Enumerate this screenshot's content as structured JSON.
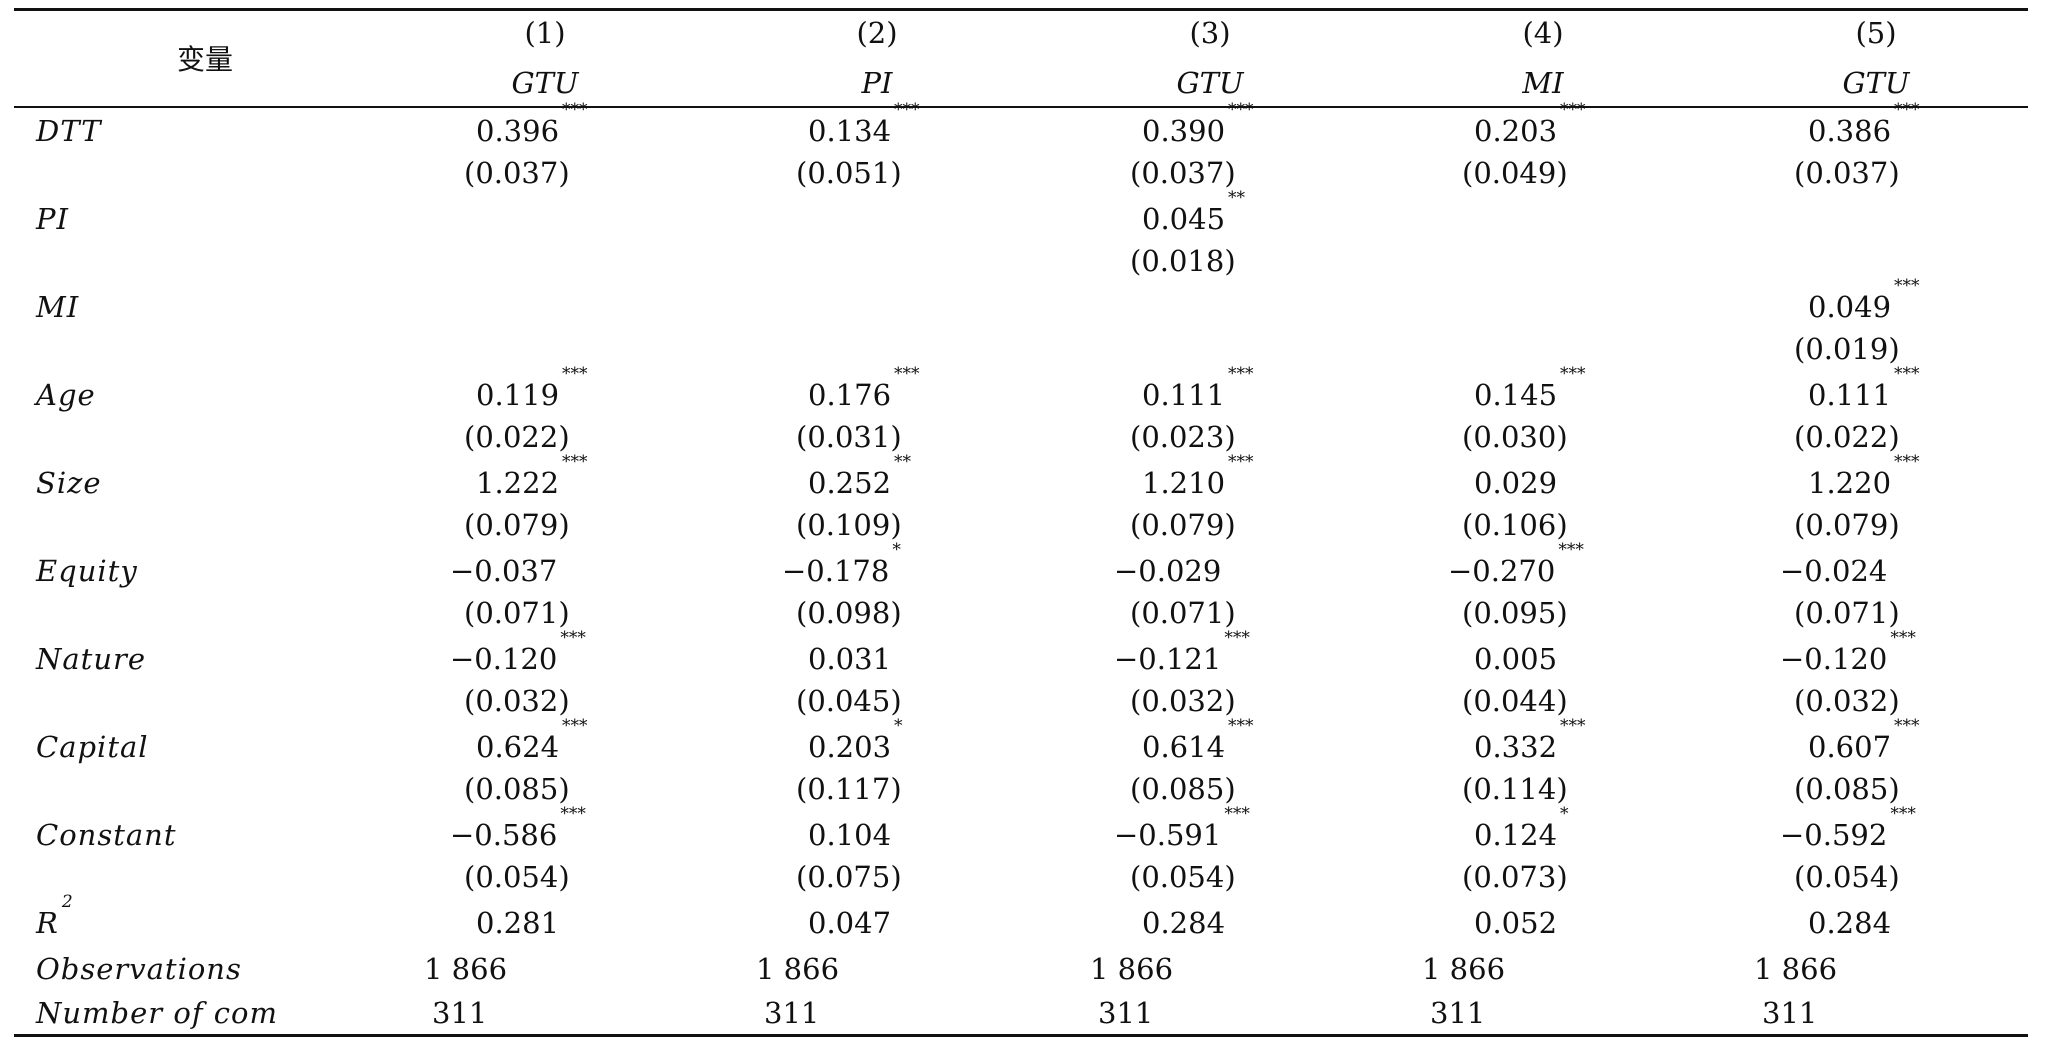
{
  "header": {
    "var_label": "变量",
    "columns": [
      {
        "num": "(1)",
        "dep": "GTU"
      },
      {
        "num": "(2)",
        "dep": "PI"
      },
      {
        "num": "(3)",
        "dep": "GTU"
      },
      {
        "num": "(4)",
        "dep": "MI"
      },
      {
        "num": "(5)",
        "dep": "GTU"
      }
    ]
  },
  "rows": [
    {
      "label": "DTT",
      "coef": [
        [
          "0.396",
          "***"
        ],
        [
          "0.134",
          "***"
        ],
        [
          "0.390",
          "***"
        ],
        [
          "0.203",
          "***"
        ],
        [
          "0.386",
          "***"
        ]
      ],
      "se": [
        "(0.037)",
        "(0.051)",
        "(0.037)",
        "(0.049)",
        "(0.037)"
      ]
    },
    {
      "label": "PI",
      "coef": [
        [
          "",
          ""
        ],
        [
          "",
          ""
        ],
        [
          "0.045",
          "**"
        ],
        [
          "",
          ""
        ],
        [
          "",
          ""
        ]
      ],
      "se": [
        "",
        "",
        "(0.018)",
        "",
        ""
      ]
    },
    {
      "label": "MI",
      "coef": [
        [
          "",
          ""
        ],
        [
          "",
          ""
        ],
        [
          "",
          ""
        ],
        [
          "",
          ""
        ],
        [
          "0.049",
          "***"
        ]
      ],
      "se": [
        "",
        "",
        "",
        "",
        "(0.019)"
      ]
    },
    {
      "label": "Age",
      "coef": [
        [
          "0.119",
          "***"
        ],
        [
          "0.176",
          "***"
        ],
        [
          "0.111",
          "***"
        ],
        [
          "0.145",
          "***"
        ],
        [
          "0.111",
          "***"
        ]
      ],
      "se": [
        "(0.022)",
        "(0.031)",
        "(0.023)",
        "(0.030)",
        "(0.022)"
      ]
    },
    {
      "label": "Size",
      "coef": [
        [
          "1.222",
          "***"
        ],
        [
          "0.252",
          "**"
        ],
        [
          "1.210",
          "***"
        ],
        [
          "0.029",
          ""
        ],
        [
          "1.220",
          "***"
        ]
      ],
      "se": [
        "(0.079)",
        "(0.109)",
        "(0.079)",
        "(0.106)",
        "(0.079)"
      ]
    },
    {
      "label": "Equity",
      "coef": [
        [
          "−0.037",
          ""
        ],
        [
          "−0.178",
          "*"
        ],
        [
          "−0.029",
          ""
        ],
        [
          "−0.270",
          "***"
        ],
        [
          "−0.024",
          ""
        ]
      ],
      "se": [
        "(0.071)",
        "(0.098)",
        "(0.071)",
        "(0.095)",
        "(0.071)"
      ]
    },
    {
      "label": "Nature",
      "coef": [
        [
          "−0.120",
          "***"
        ],
        [
          "0.031",
          ""
        ],
        [
          "−0.121",
          "***"
        ],
        [
          "0.005",
          ""
        ],
        [
          "−0.120",
          "***"
        ]
      ],
      "se": [
        "(0.032)",
        "(0.045)",
        "(0.032)",
        "(0.044)",
        "(0.032)"
      ]
    },
    {
      "label": "Capital",
      "coef": [
        [
          "0.624",
          "***"
        ],
        [
          "0.203",
          "*"
        ],
        [
          "0.614",
          "***"
        ],
        [
          "0.332",
          "***"
        ],
        [
          "0.607",
          "***"
        ]
      ],
      "se": [
        "(0.085)",
        "(0.117)",
        "(0.085)",
        "(0.114)",
        "(0.085)"
      ]
    },
    {
      "label": "Constant",
      "coef": [
        [
          "−0.586",
          "***"
        ],
        [
          "0.104",
          ""
        ],
        [
          "−0.591",
          "***"
        ],
        [
          "0.124",
          "*"
        ],
        [
          "−0.592",
          "***"
        ]
      ],
      "se": [
        "(0.054)",
        "(0.075)",
        "(0.054)",
        "(0.073)",
        "(0.054)"
      ]
    }
  ],
  "r2": {
    "label": "R",
    "sup": "2",
    "values": [
      "0.281",
      "0.047",
      "0.284",
      "0.052",
      "0.284"
    ]
  },
  "observations": {
    "label": "Observations",
    "values": [
      "1 866",
      "1 866",
      "1 866",
      "1 866",
      "1 866"
    ]
  },
  "number_of_com": {
    "label": "Number of com",
    "values": [
      "311",
      "311",
      "311",
      "311",
      "311"
    ]
  }
}
